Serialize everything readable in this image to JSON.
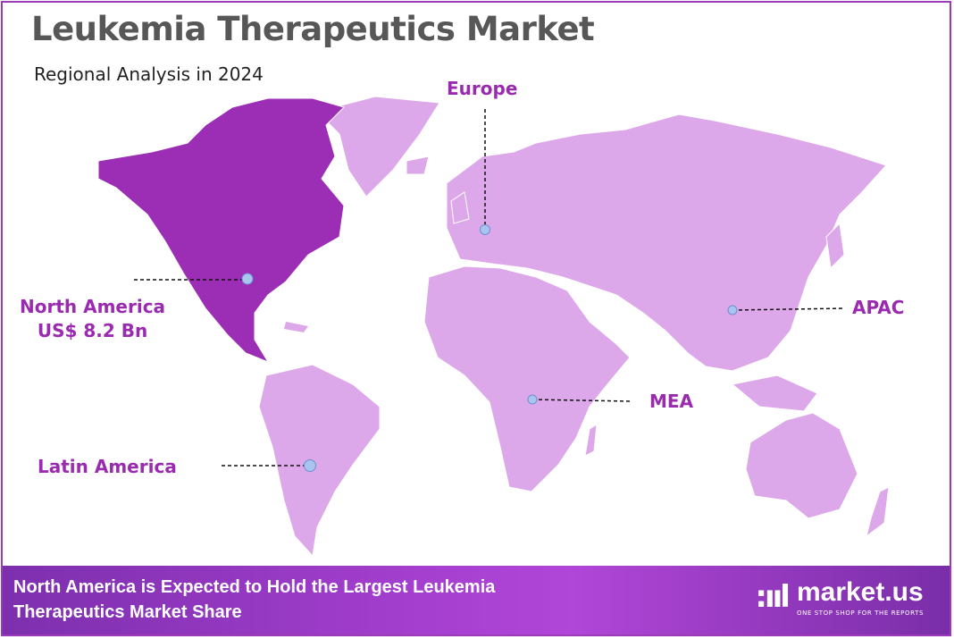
{
  "header": {
    "title": "Leukemia Therapeutics Market",
    "subtitle": "Regional Analysis in 2024"
  },
  "regions": [
    {
      "id": "north-america",
      "name": "North America",
      "value": "US$ 8.2 Bn",
      "highlighted": true
    },
    {
      "id": "europe",
      "name": "Europe"
    },
    {
      "id": "apac",
      "name": "APAC"
    },
    {
      "id": "mea",
      "name": "MEA"
    },
    {
      "id": "latin-america",
      "name": "Latin America"
    }
  ],
  "colors": {
    "highlight": "#9c2db5",
    "land": "#dda8ea",
    "label": "#9a2bb0",
    "marker": "#a9c4ee"
  },
  "footer": {
    "headline_line1": "North America is Expected to Hold the Largest Leukemia",
    "headline_line2": "Therapeutics Market Share",
    "brand": "market.us",
    "brand_tagline": "ONE STOP SHOP FOR THE REPORTS"
  }
}
